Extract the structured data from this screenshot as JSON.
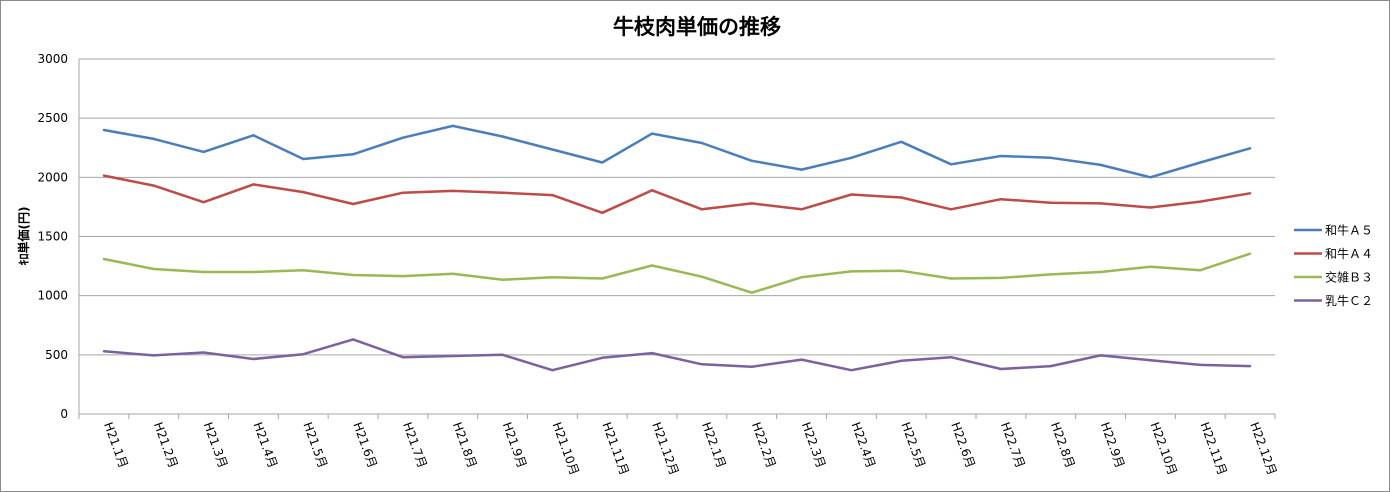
{
  "chart_data": {
    "type": "line",
    "title": "牛枝肉単価の推移",
    "ylabel": "ｷﾛ単価(円)",
    "xlabel": "",
    "ylim": [
      0,
      3000
    ],
    "yticks": [
      0,
      500,
      1000,
      1500,
      2000,
      2500,
      3000
    ],
    "grid": true,
    "legend_position": "right",
    "categories": [
      "H21.1月",
      "H21.2月",
      "H21.3月",
      "H21.4月",
      "H21.5月",
      "H21.6月",
      "H21.7月",
      "H21.8月",
      "H21.9月",
      "H21.10月",
      "H21.11月",
      "H21.12月",
      "H22.1月",
      "H22.2月",
      "H22.3月",
      "H22.4月",
      "H22.5月",
      "H22.6月",
      "H22.7月",
      "H22.8月",
      "H22.9月",
      "H22.10月",
      "H22.11月",
      "H22.12月"
    ],
    "series": [
      {
        "name": "和牛Ａ５",
        "color": "#4a7ebb",
        "values": [
          2400,
          2325,
          2215,
          2355,
          2155,
          2195,
          2335,
          2435,
          2345,
          2235,
          2125,
          2370,
          2290,
          2140,
          2065,
          2165,
          2300,
          2110,
          2180,
          2165,
          2105,
          2000,
          2125,
          2245
        ]
      },
      {
        "name": "和牛Ａ４",
        "color": "#be4b48",
        "values": [
          2015,
          1930,
          1790,
          1940,
          1875,
          1775,
          1870,
          1885,
          1870,
          1850,
          1700,
          1890,
          1730,
          1780,
          1730,
          1855,
          1830,
          1730,
          1815,
          1785,
          1780,
          1745,
          1795,
          1865
        ]
      },
      {
        "name": "交雑Ｂ３",
        "color": "#98b954",
        "values": [
          1310,
          1225,
          1200,
          1200,
          1215,
          1175,
          1165,
          1185,
          1135,
          1155,
          1145,
          1255,
          1160,
          1025,
          1155,
          1205,
          1210,
          1145,
          1150,
          1180,
          1200,
          1245,
          1215,
          1355
        ]
      },
      {
        "name": "乳牛Ｃ２",
        "color": "#7d60a0",
        "values": [
          530,
          495,
          520,
          465,
          505,
          630,
          480,
          490,
          500,
          370,
          475,
          515,
          420,
          400,
          460,
          370,
          450,
          480,
          380,
          405,
          495,
          455,
          415,
          405
        ]
      }
    ]
  }
}
